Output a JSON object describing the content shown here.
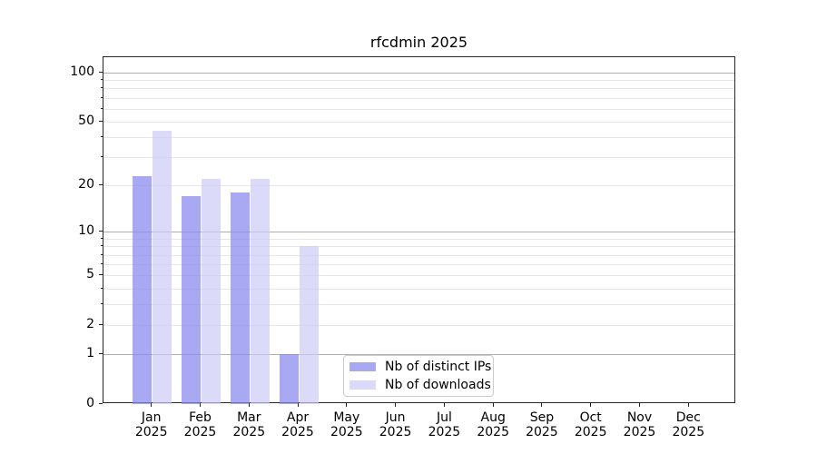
{
  "chart_data": {
    "type": "bar",
    "title": "rfcdmin 2025",
    "x_axis": {
      "months": [
        "Jan",
        "Feb",
        "Mar",
        "Apr",
        "May",
        "Jun",
        "Jul",
        "Aug",
        "Sep",
        "Oct",
        "Nov",
        "Dec"
      ],
      "year": "2025"
    },
    "categories": [
      "Jan 2025",
      "Feb 2025",
      "Mar 2025",
      "Apr 2025",
      "May 2025",
      "Jun 2025",
      "Jul 2025",
      "Aug 2025",
      "Sep 2025",
      "Oct 2025",
      "Nov 2025",
      "Dec 2025"
    ],
    "series": [
      {
        "key": "distinct-ips",
        "name": "Nb of distinct IPs",
        "color": "#a8a8f1",
        "fill": "#8888eeba",
        "values": [
          23,
          17,
          18,
          1,
          0,
          0,
          0,
          0,
          0,
          0,
          0,
          0
        ]
      },
      {
        "key": "downloads",
        "name": "Nb of downloads",
        "color": "#dbdbf8",
        "fill": "#ccccf7b3",
        "values": [
          44,
          22,
          22,
          8,
          0,
          0,
          0,
          0,
          0,
          0,
          0,
          0
        ]
      }
    ],
    "yscale": "log1p",
    "ylim": [
      0,
      124
    ],
    "ylabel": "",
    "xlabel": "",
    "y_major_ticks": [
      0,
      1,
      2,
      5,
      10,
      20,
      50,
      100
    ],
    "y_grid_major": [
      1,
      10,
      100
    ],
    "y_grid_minor": [
      2,
      3,
      4,
      5,
      6,
      7,
      8,
      9,
      20,
      30,
      40,
      50,
      60,
      70,
      80,
      90
    ],
    "grid": true,
    "legend_position": "lower center inside axes"
  },
  "legend": {
    "items": [
      {
        "label": "Nb of distinct IPs"
      },
      {
        "label": "Nb of downloads"
      }
    ]
  },
  "colors": {
    "bar_distinct_ips": "#a8a8f1",
    "bar_downloads": "#dbdbf8",
    "grid_major": "#b0b0b0",
    "grid_minor": "#e7e7e7",
    "axis": "#262626",
    "background": "#ffffff"
  }
}
